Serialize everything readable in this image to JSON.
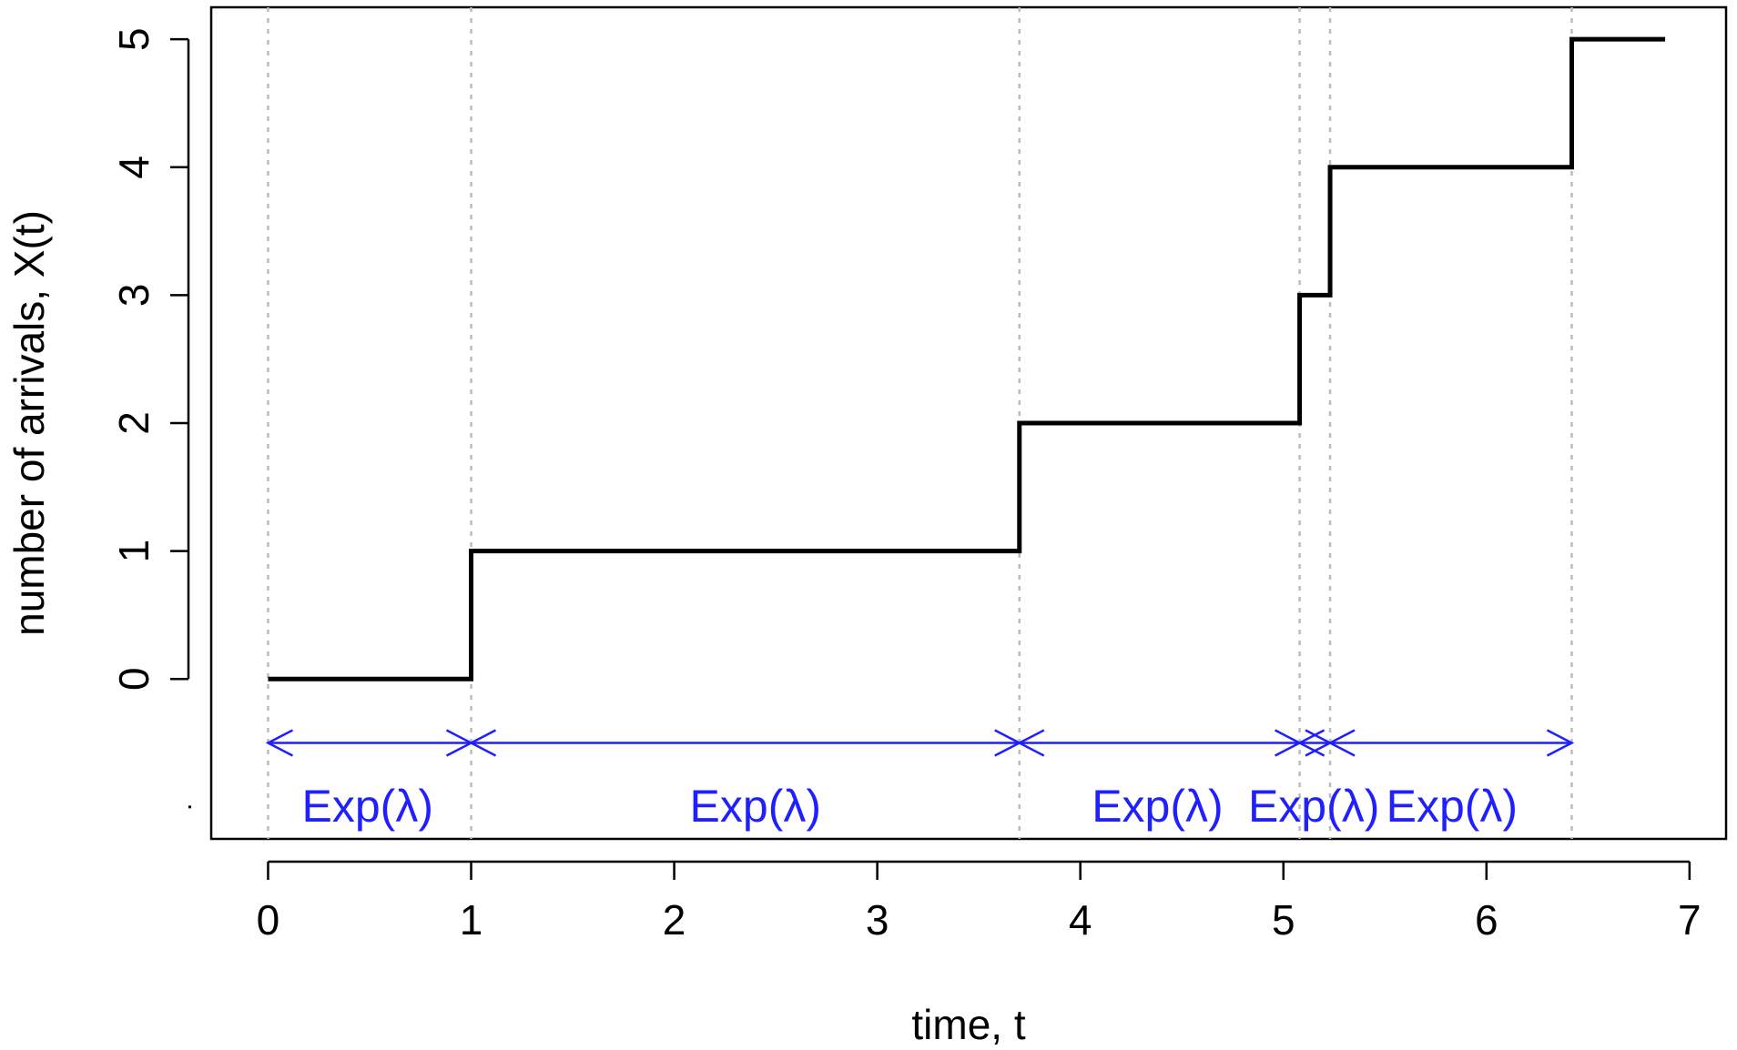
{
  "chart_data": {
    "type": "line",
    "step": true,
    "title": "",
    "xlabel": "time, t",
    "ylabel": "number of arrivals, X(t)",
    "xlim": [
      -0.28,
      7.18
    ],
    "ylim": [
      -1.25,
      5.25
    ],
    "xticks": [
      0,
      1,
      2,
      3,
      4,
      5,
      6,
      7
    ],
    "yticks": [
      0,
      1,
      2,
      3,
      4,
      5
    ],
    "arrival_times": [
      1.0,
      3.7,
      5.08,
      5.23,
      6.42
    ],
    "series": [
      {
        "x": [
          0,
          1.0,
          3.7,
          5.08,
          5.23,
          6.42,
          6.88
        ],
        "y": [
          0,
          1,
          2,
          3,
          4,
          5,
          5
        ]
      }
    ],
    "interarrival_intervals": [
      {
        "from": 0,
        "to": 1.0,
        "label": "Exp(λ)"
      },
      {
        "from": 1.0,
        "to": 3.7,
        "label": "Exp(λ)"
      },
      {
        "from": 3.7,
        "to": 5.08,
        "label": "Exp(λ)"
      },
      {
        "from": 5.08,
        "to": 5.23,
        "label": "Exp(λ)"
      },
      {
        "from": 5.23,
        "to": 6.42,
        "label": "Exp(λ)"
      }
    ],
    "interval_arrow_y": -0.5,
    "interval_label_y": -1.0,
    "interval_label_centers_x": [
      0.49,
      2.4,
      4.38,
      5.15,
      5.83
    ],
    "grid": false,
    "vertical_guides": true,
    "colors": {
      "step_line": "#000000",
      "guide_lines": "#bbbbbb",
      "annotation": "#1f1fff",
      "axis": "#000000"
    }
  }
}
